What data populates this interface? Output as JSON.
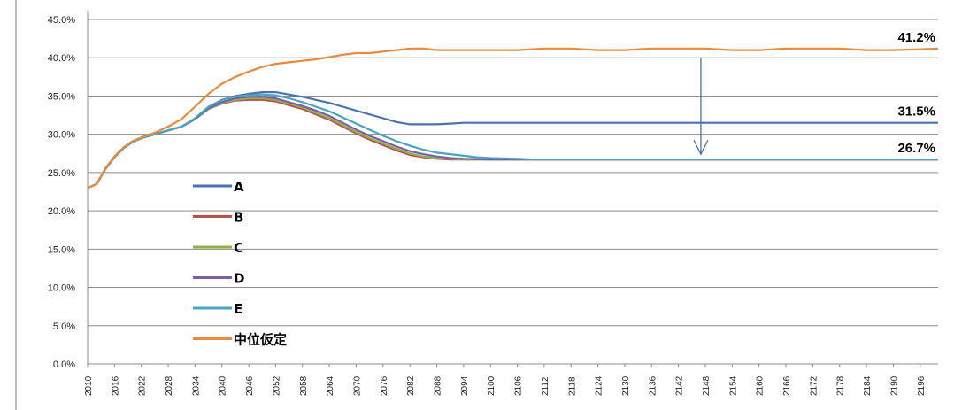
{
  "chart_data": {
    "type": "line",
    "title": "",
    "xlabel": "",
    "ylabel": "",
    "xlim": [
      2010,
      2200
    ],
    "ylim": [
      0,
      45
    ],
    "grid": "horizontal",
    "legend_position": "left",
    "y_ticks": [
      "0.0%",
      "5.0%",
      "10.0%",
      "15.0%",
      "20.0%",
      "25.0%",
      "30.0%",
      "35.0%",
      "40.0%",
      "45.0%"
    ],
    "x_ticks": [
      "2010",
      "2016",
      "2022",
      "2028",
      "2034",
      "2040",
      "2046",
      "2052",
      "2058",
      "2064",
      "2070",
      "2076",
      "2082",
      "2088",
      "2094",
      "2100",
      "2106",
      "2112",
      "2118",
      "2124",
      "2130",
      "2136",
      "2142",
      "2148",
      "2154",
      "2160",
      "2166",
      "2172",
      "2178",
      "2184",
      "2190",
      "2196"
    ],
    "series": [
      {
        "name": "A",
        "color": "#4a72b0",
        "points": [
          [
            2010,
            23.0
          ],
          [
            2012,
            23.5
          ],
          [
            2014,
            25.5
          ],
          [
            2016,
            27.0
          ],
          [
            2018,
            28.2
          ],
          [
            2020,
            29.0
          ],
          [
            2022,
            29.5
          ],
          [
            2025,
            30.0
          ],
          [
            2028,
            30.5
          ],
          [
            2031,
            31.0
          ],
          [
            2034,
            32.0
          ],
          [
            2037,
            33.5
          ],
          [
            2040,
            34.5
          ],
          [
            2043,
            35.0
          ],
          [
            2046,
            35.3
          ],
          [
            2049,
            35.5
          ],
          [
            2052,
            35.5
          ],
          [
            2055,
            35.2
          ],
          [
            2058,
            34.9
          ],
          [
            2061,
            34.5
          ],
          [
            2064,
            34.1
          ],
          [
            2067,
            33.6
          ],
          [
            2070,
            33.1
          ],
          [
            2073,
            32.6
          ],
          [
            2076,
            32.1
          ],
          [
            2079,
            31.6
          ],
          [
            2082,
            31.3
          ],
          [
            2085,
            31.3
          ],
          [
            2088,
            31.3
          ],
          [
            2091,
            31.4
          ],
          [
            2094,
            31.5
          ],
          [
            2100,
            31.5
          ],
          [
            2150,
            31.5
          ],
          [
            2200,
            31.5
          ]
        ]
      },
      {
        "name": "B",
        "color": "#b84f4a",
        "points": [
          [
            2010,
            23.0
          ],
          [
            2012,
            23.5
          ],
          [
            2014,
            25.5
          ],
          [
            2016,
            27.0
          ],
          [
            2018,
            28.2
          ],
          [
            2020,
            29.0
          ],
          [
            2022,
            29.5
          ],
          [
            2025,
            30.0
          ],
          [
            2028,
            30.5
          ],
          [
            2031,
            31.0
          ],
          [
            2034,
            32.0
          ],
          [
            2037,
            33.3
          ],
          [
            2040,
            34.0
          ],
          [
            2043,
            34.4
          ],
          [
            2046,
            34.5
          ],
          [
            2049,
            34.5
          ],
          [
            2052,
            34.3
          ],
          [
            2055,
            33.8
          ],
          [
            2058,
            33.3
          ],
          [
            2061,
            32.6
          ],
          [
            2064,
            31.9
          ],
          [
            2067,
            31.0
          ],
          [
            2070,
            30.1
          ],
          [
            2073,
            29.3
          ],
          [
            2076,
            28.6
          ],
          [
            2079,
            27.9
          ],
          [
            2082,
            27.3
          ],
          [
            2085,
            27.0
          ],
          [
            2088,
            26.8
          ],
          [
            2091,
            26.7
          ],
          [
            2100,
            26.7
          ],
          [
            2150,
            26.7
          ],
          [
            2200,
            26.7
          ]
        ]
      },
      {
        "name": "C",
        "color": "#90b04e",
        "points": [
          [
            2010,
            23.0
          ],
          [
            2012,
            23.5
          ],
          [
            2014,
            25.5
          ],
          [
            2016,
            27.0
          ],
          [
            2018,
            28.2
          ],
          [
            2020,
            29.0
          ],
          [
            2022,
            29.5
          ],
          [
            2025,
            30.0
          ],
          [
            2028,
            30.5
          ],
          [
            2031,
            31.0
          ],
          [
            2034,
            32.0
          ],
          [
            2037,
            33.3
          ],
          [
            2040,
            34.1
          ],
          [
            2043,
            34.5
          ],
          [
            2046,
            34.7
          ],
          [
            2049,
            34.7
          ],
          [
            2052,
            34.5
          ],
          [
            2055,
            34.0
          ],
          [
            2058,
            33.5
          ],
          [
            2061,
            32.8
          ],
          [
            2064,
            32.1
          ],
          [
            2067,
            31.2
          ],
          [
            2070,
            30.3
          ],
          [
            2073,
            29.5
          ],
          [
            2076,
            28.8
          ],
          [
            2079,
            28.1
          ],
          [
            2082,
            27.5
          ],
          [
            2085,
            27.1
          ],
          [
            2088,
            26.9
          ],
          [
            2091,
            26.8
          ],
          [
            2094,
            26.7
          ],
          [
            2100,
            26.7
          ],
          [
            2150,
            26.7
          ],
          [
            2200,
            26.7
          ]
        ]
      },
      {
        "name": "D",
        "color": "#7a5ea6",
        "points": [
          [
            2010,
            23.0
          ],
          [
            2012,
            23.5
          ],
          [
            2014,
            25.5
          ],
          [
            2016,
            27.0
          ],
          [
            2018,
            28.2
          ],
          [
            2020,
            29.0
          ],
          [
            2022,
            29.5
          ],
          [
            2025,
            30.0
          ],
          [
            2028,
            30.5
          ],
          [
            2031,
            31.0
          ],
          [
            2034,
            32.0
          ],
          [
            2037,
            33.4
          ],
          [
            2040,
            34.2
          ],
          [
            2043,
            34.7
          ],
          [
            2046,
            34.9
          ],
          [
            2049,
            34.9
          ],
          [
            2052,
            34.7
          ],
          [
            2055,
            34.2
          ],
          [
            2058,
            33.7
          ],
          [
            2061,
            33.1
          ],
          [
            2064,
            32.4
          ],
          [
            2067,
            31.5
          ],
          [
            2070,
            30.6
          ],
          [
            2073,
            29.8
          ],
          [
            2076,
            29.1
          ],
          [
            2079,
            28.4
          ],
          [
            2082,
            27.8
          ],
          [
            2085,
            27.4
          ],
          [
            2088,
            27.1
          ],
          [
            2091,
            26.9
          ],
          [
            2094,
            26.8
          ],
          [
            2100,
            26.7
          ],
          [
            2150,
            26.7
          ],
          [
            2200,
            26.7
          ]
        ]
      },
      {
        "name": "E",
        "color": "#48a4c0",
        "points": [
          [
            2010,
            23.0
          ],
          [
            2012,
            23.5
          ],
          [
            2014,
            25.5
          ],
          [
            2016,
            27.0
          ],
          [
            2018,
            28.2
          ],
          [
            2020,
            29.0
          ],
          [
            2022,
            29.5
          ],
          [
            2025,
            30.0
          ],
          [
            2028,
            30.5
          ],
          [
            2031,
            31.0
          ],
          [
            2034,
            32.1
          ],
          [
            2037,
            33.6
          ],
          [
            2040,
            34.5
          ],
          [
            2043,
            34.9
          ],
          [
            2046,
            35.1
          ],
          [
            2049,
            35.2
          ],
          [
            2052,
            35.1
          ],
          [
            2055,
            34.7
          ],
          [
            2058,
            34.2
          ],
          [
            2061,
            33.6
          ],
          [
            2064,
            33.0
          ],
          [
            2067,
            32.2
          ],
          [
            2070,
            31.4
          ],
          [
            2073,
            30.6
          ],
          [
            2076,
            29.8
          ],
          [
            2079,
            29.1
          ],
          [
            2082,
            28.5
          ],
          [
            2085,
            28.0
          ],
          [
            2088,
            27.6
          ],
          [
            2091,
            27.4
          ],
          [
            2094,
            27.2
          ],
          [
            2097,
            27.0
          ],
          [
            2100,
            26.9
          ],
          [
            2106,
            26.8
          ],
          [
            2110,
            26.7
          ],
          [
            2150,
            26.7
          ],
          [
            2200,
            26.7
          ]
        ]
      },
      {
        "name": "中位仮定",
        "color": "#ea8a3a",
        "points": [
          [
            2010,
            23.0
          ],
          [
            2012,
            23.5
          ],
          [
            2014,
            25.6
          ],
          [
            2016,
            27.1
          ],
          [
            2018,
            28.3
          ],
          [
            2020,
            29.1
          ],
          [
            2022,
            29.6
          ],
          [
            2025,
            30.2
          ],
          [
            2028,
            31.0
          ],
          [
            2031,
            32.0
          ],
          [
            2034,
            33.6
          ],
          [
            2037,
            35.3
          ],
          [
            2040,
            36.6
          ],
          [
            2043,
            37.5
          ],
          [
            2046,
            38.2
          ],
          [
            2049,
            38.8
          ],
          [
            2052,
            39.2
          ],
          [
            2055,
            39.4
          ],
          [
            2058,
            39.6
          ],
          [
            2061,
            39.8
          ],
          [
            2064,
            40.1
          ],
          [
            2067,
            40.4
          ],
          [
            2070,
            40.6
          ],
          [
            2073,
            40.6
          ],
          [
            2076,
            40.8
          ],
          [
            2079,
            41.0
          ],
          [
            2082,
            41.2
          ],
          [
            2085,
            41.2
          ],
          [
            2088,
            41.0
          ],
          [
            2094,
            41.0
          ],
          [
            2100,
            41.0
          ],
          [
            2106,
            41.0
          ],
          [
            2112,
            41.2
          ],
          [
            2118,
            41.2
          ],
          [
            2124,
            41.0
          ],
          [
            2130,
            41.0
          ],
          [
            2136,
            41.2
          ],
          [
            2142,
            41.2
          ],
          [
            2148,
            41.2
          ],
          [
            2154,
            41.0
          ],
          [
            2160,
            41.0
          ],
          [
            2166,
            41.2
          ],
          [
            2172,
            41.2
          ],
          [
            2178,
            41.2
          ],
          [
            2184,
            41.0
          ],
          [
            2190,
            41.0
          ],
          [
            2196,
            41.1
          ],
          [
            2200,
            41.2
          ]
        ]
      }
    ],
    "annotations": [
      {
        "text": "41.2%",
        "x": 2200,
        "y": 41.2
      },
      {
        "text": "31.5%",
        "x": 2200,
        "y": 31.5
      },
      {
        "text": "26.7%",
        "x": 2200,
        "y": 26.7
      }
    ],
    "arrow": {
      "x": 2147,
      "y_from": 41.2,
      "y_to": 26.7,
      "color": "#4a72b0"
    }
  }
}
